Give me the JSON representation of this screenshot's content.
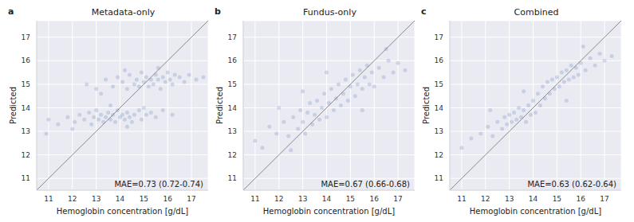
{
  "chart_data": [
    {
      "type": "scatter",
      "label": "a",
      "title": "Metadata-only",
      "xlabel": "Hemoglobin concentration [g/dL]",
      "ylabel": "Predicted",
      "annotation": "MAE=0.73 (0.72-0.74)",
      "color": "#4c72b0",
      "grid": true,
      "marker": "circle",
      "xlim": [
        10.5,
        17.7
      ],
      "ylim": [
        10.5,
        17.7
      ],
      "xticks": [
        11,
        12,
        13,
        14,
        15,
        16,
        17
      ],
      "yticks": [
        11,
        12,
        13,
        14,
        15,
        16,
        17
      ],
      "x": [
        11.0,
        11.4,
        11.8,
        12.1,
        12.3,
        12.5,
        12.7,
        12.8,
        12.9,
        13.0,
        13.1,
        13.2,
        13.3,
        13.4,
        13.5,
        13.6,
        13.7,
        13.8,
        13.9,
        14.0,
        14.1,
        14.2,
        14.3,
        14.4,
        14.5,
        14.6,
        14.8,
        14.9,
        15.1,
        15.3,
        15.5,
        15.8,
        16.2,
        10.9,
        12.0,
        13.6,
        14.3,
        15.0,
        12.6,
        13.0,
        13.4,
        13.7,
        13.9,
        14.1,
        14.3,
        14.4,
        14.6,
        14.7,
        14.8,
        14.9,
        15.0,
        15.1,
        15.2,
        15.3,
        15.4,
        15.5,
        15.6,
        15.7,
        15.8,
        15.9,
        16.0,
        16.1,
        16.2,
        16.3,
        16.5,
        16.7,
        16.9,
        17.2,
        17.5,
        14.2,
        15.6,
        13.2
      ],
      "y": [
        13.5,
        13.3,
        13.6,
        13.4,
        13.7,
        13.5,
        13.8,
        13.3,
        13.6,
        13.9,
        13.5,
        13.7,
        13.4,
        13.6,
        13.8,
        13.5,
        13.7,
        13.4,
        13.9,
        13.6,
        13.7,
        13.5,
        13.8,
        13.6,
        13.4,
        13.7,
        13.9,
        13.5,
        13.7,
        13.8,
        13.6,
        13.9,
        13.7,
        12.9,
        13.1,
        14.1,
        13.2,
        14.0,
        15.0,
        14.8,
        15.2,
        14.9,
        15.3,
        15.1,
        14.8,
        15.4,
        15.0,
        15.2,
        14.9,
        15.5,
        15.1,
        15.3,
        14.9,
        15.2,
        15.0,
        15.4,
        15.2,
        14.8,
        15.3,
        15.1,
        15.5,
        15.2,
        15.0,
        15.4,
        15.3,
        15.1,
        15.4,
        15.2,
        15.3,
        15.6,
        15.7,
        14.6
      ]
    },
    {
      "type": "scatter",
      "label": "b",
      "title": "Fundus-only",
      "xlabel": "Hemoglobin concentration [g/dL]",
      "ylabel": "Predicted",
      "annotation": "MAE=0.67 (0.66-0.68)",
      "color": "#4c72b0",
      "grid": true,
      "marker": "circle",
      "xlim": [
        10.5,
        17.7
      ],
      "ylim": [
        10.5,
        17.7
      ],
      "xticks": [
        11,
        12,
        13,
        14,
        15,
        16,
        17
      ],
      "yticks": [
        11,
        12,
        13,
        14,
        15,
        16,
        17
      ],
      "x": [
        11.0,
        11.3,
        11.6,
        11.9,
        12.2,
        12.4,
        12.6,
        12.8,
        12.9,
        13.0,
        13.1,
        13.2,
        13.3,
        13.4,
        13.5,
        13.6,
        13.7,
        13.8,
        13.9,
        14.0,
        14.1,
        14.2,
        14.3,
        14.4,
        14.5,
        14.6,
        14.7,
        14.8,
        14.9,
        15.0,
        15.1,
        15.2,
        15.3,
        15.4,
        15.5,
        15.6,
        15.7,
        15.8,
        15.9,
        16.0,
        16.2,
        16.4,
        16.6,
        16.8,
        17.0,
        17.3,
        12.0,
        13.0,
        15.5,
        16.5,
        14.0,
        12.5
      ],
      "y": [
        12.6,
        12.3,
        13.2,
        12.9,
        13.4,
        12.8,
        13.6,
        13.1,
        13.9,
        13.4,
        12.9,
        13.8,
        14.2,
        13.3,
        13.7,
        14.3,
        13.5,
        14.0,
        14.6,
        13.6,
        14.2,
        14.8,
        13.9,
        14.4,
        15.0,
        14.1,
        14.6,
        15.2,
        14.3,
        14.9,
        15.4,
        14.5,
        15.0,
        15.6,
        14.8,
        15.3,
        15.8,
        15.0,
        15.5,
        14.9,
        15.7,
        15.3,
        16.0,
        15.5,
        15.9,
        15.6,
        14.0,
        14.7,
        13.9,
        16.5,
        15.5,
        12.2
      ]
    },
    {
      "type": "scatter",
      "label": "c",
      "title": "Combined",
      "xlabel": "Hemoglobin concentration [g/dL]",
      "ylabel": "Predicted",
      "annotation": "MAE=0.63 (0.62-0.64)",
      "color": "#4c72b0",
      "grid": true,
      "marker": "circle",
      "xlim": [
        10.5,
        17.7
      ],
      "ylim": [
        10.5,
        17.7
      ],
      "xticks": [
        11,
        12,
        13,
        14,
        15,
        16,
        17
      ],
      "yticks": [
        11,
        12,
        13,
        14,
        15,
        16,
        17
      ],
      "x": [
        11.0,
        11.4,
        11.8,
        12.1,
        12.3,
        12.5,
        12.7,
        12.8,
        12.9,
        13.0,
        13.1,
        13.2,
        13.3,
        13.4,
        13.5,
        13.6,
        13.7,
        13.8,
        13.9,
        14.0,
        14.1,
        14.2,
        14.3,
        14.4,
        14.5,
        14.6,
        14.7,
        14.8,
        14.9,
        15.0,
        15.1,
        15.2,
        15.3,
        15.4,
        15.5,
        15.6,
        15.7,
        15.8,
        15.9,
        16.0,
        16.2,
        16.4,
        16.6,
        16.8,
        17.0,
        17.3,
        12.2,
        15.4,
        13.6,
        16.1
      ],
      "y": [
        12.3,
        12.7,
        12.9,
        13.2,
        12.8,
        13.4,
        13.1,
        13.6,
        13.3,
        13.7,
        13.4,
        13.8,
        13.5,
        14.0,
        13.6,
        13.9,
        13.4,
        14.1,
        13.7,
        14.3,
        13.8,
        14.6,
        14.1,
        14.9,
        14.4,
        15.1,
        14.6,
        15.2,
        14.8,
        15.3,
        14.9,
        15.5,
        15.1,
        15.6,
        15.2,
        15.8,
        15.3,
        15.7,
        15.4,
        15.9,
        15.6,
        16.1,
        15.8,
        16.3,
        16.0,
        16.2,
        13.9,
        14.3,
        14.7,
        16.6
      ]
    }
  ]
}
